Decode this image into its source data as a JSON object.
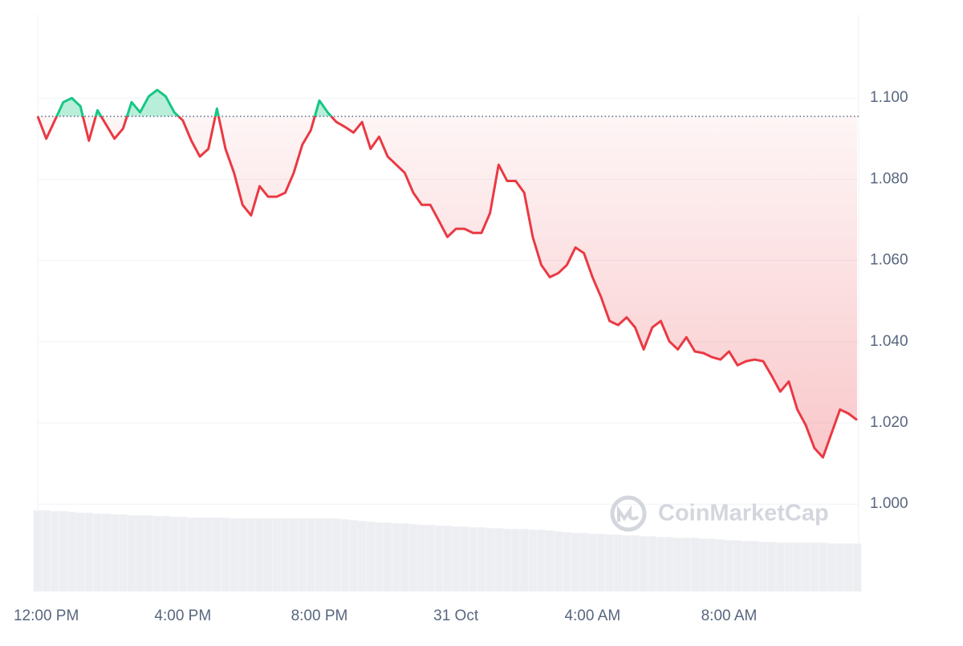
{
  "chart_data": {
    "type": "baseline-line",
    "watermark": "CoinMarketCap",
    "categories": [
      null,
      "12:00 PM",
      null,
      null,
      null,
      null,
      null,
      null,
      null,
      null,
      null,
      null,
      null,
      null,
      null,
      null,
      null,
      "4:00 PM",
      null,
      null,
      null,
      null,
      null,
      null,
      null,
      null,
      null,
      null,
      null,
      null,
      null,
      null,
      null,
      "8:00 PM",
      null,
      null,
      null,
      null,
      null,
      null,
      null,
      null,
      null,
      null,
      null,
      null,
      null,
      null,
      null,
      "31 Oct",
      null,
      null,
      null,
      null,
      null,
      null,
      null,
      null,
      null,
      null,
      null,
      null,
      null,
      null,
      null,
      "4:00 AM",
      null,
      null,
      null,
      null,
      null,
      null,
      null,
      null,
      null,
      null,
      null,
      null,
      null,
      null,
      null,
      "8:00 AM",
      null,
      null,
      null,
      null,
      null,
      null,
      null,
      null,
      null,
      null,
      null,
      null,
      null,
      null,
      null
    ],
    "series": [
      {
        "values": [
          1.0955,
          1.09,
          1.0945,
          1.099,
          1.1,
          1.098,
          1.0895,
          1.097,
          1.0935,
          1.09,
          1.0925,
          1.099,
          1.0965,
          1.1004,
          1.102,
          1.1004,
          1.0965,
          1.0945,
          1.0895,
          1.0856,
          1.0875,
          1.0974,
          1.0875,
          1.0816,
          1.0737,
          1.0711,
          1.0783,
          1.0757,
          1.0757,
          1.0767,
          1.0816,
          1.0885,
          1.0921,
          1.0994,
          1.0964,
          1.0941,
          1.0929,
          1.0915,
          1.0941,
          1.0875,
          1.0905,
          1.0856,
          1.0836,
          1.0816,
          1.0767,
          1.0737,
          1.0737,
          1.0698,
          1.0658,
          1.0678,
          1.0678,
          1.0668,
          1.0668,
          1.0717,
          1.0836,
          1.0796,
          1.0796,
          1.0767,
          1.0658,
          1.0589,
          1.0559,
          1.0569,
          1.0589,
          1.0632,
          1.0618,
          1.0559,
          1.051,
          1.0451,
          1.0441,
          1.046,
          1.0435,
          1.0381,
          1.0435,
          1.0451,
          1.0401,
          1.0381,
          1.0411,
          1.0376,
          1.0372,
          1.0362,
          1.0356,
          1.0376,
          1.0342,
          1.0352,
          1.0356,
          1.0352,
          1.0316,
          1.0277,
          1.0302,
          1.0233,
          1.0194,
          1.0138,
          1.0115,
          1.0174,
          1.0233,
          1.0223,
          1.0207
        ]
      }
    ],
    "baseline": 1.0955,
    "up_color": "#16c784",
    "down_color": "#ea3943",
    "volume": {
      "axis": "y2",
      "color": "#eceef2",
      "values": [
        100,
        100,
        99,
        99,
        98,
        97,
        97,
        96,
        96,
        95,
        95,
        94,
        94,
        94,
        93,
        93,
        92,
        92,
        91,
        91,
        91,
        91,
        91,
        90,
        90,
        90,
        90,
        90,
        90,
        90,
        90,
        90,
        90,
        90,
        90,
        90,
        89,
        88,
        87,
        86,
        85,
        85,
        84,
        84,
        83,
        82,
        82,
        81,
        81,
        80,
        80,
        79,
        79,
        78,
        78,
        77,
        77,
        77,
        76,
        76,
        75,
        74,
        73,
        72,
        72,
        71,
        71,
        70,
        70,
        69,
        69,
        68,
        68,
        67,
        67,
        66,
        66,
        66,
        65,
        65,
        64,
        63,
        63,
        62,
        62,
        61,
        61,
        60,
        60,
        60,
        60,
        60,
        60,
        59,
        59,
        59,
        59
      ]
    },
    "y2lim": [
      0,
      100
    ],
    "ylim": [
      0.9785,
      1.1206
    ],
    "yticks": [
      {
        "value": 1.0,
        "label": "1.000"
      },
      {
        "value": 1.02,
        "label": "1.020"
      },
      {
        "value": 1.04,
        "label": "1.040"
      },
      {
        "value": 1.06,
        "label": "1.060"
      },
      {
        "value": 1.08,
        "label": "1.080"
      },
      {
        "value": 1.1,
        "label": "1.100"
      }
    ],
    "grid": true
  }
}
